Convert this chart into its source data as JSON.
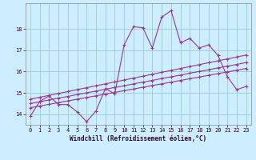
{
  "xlabel": "Windchill (Refroidissement éolien,°C)",
  "background_color": "#cceeff",
  "grid_color": "#99cccc",
  "line_color": "#993399",
  "xmin": -0.5,
  "xmax": 23.5,
  "ymin": 13.5,
  "ymax": 19.2,
  "yticks": [
    14,
    15,
    16,
    17,
    18
  ],
  "xticks": [
    0,
    1,
    2,
    3,
    4,
    5,
    6,
    7,
    8,
    9,
    10,
    11,
    12,
    13,
    14,
    15,
    16,
    17,
    18,
    19,
    20,
    21,
    22,
    23
  ],
  "s1_x": [
    0,
    1,
    2,
    3,
    4,
    5,
    6,
    7,
    8,
    9,
    10,
    11,
    12,
    13,
    14,
    15,
    16,
    17,
    18,
    19,
    20,
    21,
    22,
    23
  ],
  "s1_y": [
    13.9,
    14.6,
    14.85,
    14.45,
    14.45,
    14.1,
    13.65,
    14.15,
    15.2,
    14.95,
    17.25,
    18.1,
    18.05,
    17.1,
    18.55,
    18.85,
    17.35,
    17.55,
    17.1,
    17.25,
    16.75,
    15.75,
    15.15,
    15.3
  ],
  "s2_x": [
    0,
    1,
    2,
    3,
    4,
    5,
    6,
    7,
    8,
    9,
    10,
    11,
    12,
    13,
    14,
    15,
    16,
    17,
    18,
    19,
    20,
    21,
    22,
    23
  ],
  "s2_y": [
    14.3,
    14.38,
    14.46,
    14.54,
    14.62,
    14.7,
    14.78,
    14.86,
    14.94,
    15.02,
    15.1,
    15.18,
    15.26,
    15.34,
    15.42,
    15.5,
    15.58,
    15.66,
    15.74,
    15.82,
    15.9,
    15.98,
    16.06,
    16.14
  ],
  "s3_x": [
    0,
    1,
    2,
    3,
    4,
    5,
    6,
    7,
    8,
    9,
    10,
    11,
    12,
    13,
    14,
    15,
    16,
    17,
    18,
    19,
    20,
    21,
    22,
    23
  ],
  "s3_y": [
    14.5,
    14.58,
    14.67,
    14.75,
    14.83,
    14.92,
    15.0,
    15.08,
    15.17,
    15.25,
    15.33,
    15.42,
    15.5,
    15.58,
    15.67,
    15.75,
    15.83,
    15.92,
    16.0,
    16.08,
    16.17,
    16.25,
    16.33,
    16.42
  ],
  "s4_x": [
    0,
    1,
    2,
    3,
    4,
    5,
    6,
    7,
    8,
    9,
    10,
    11,
    12,
    13,
    14,
    15,
    16,
    17,
    18,
    19,
    20,
    21,
    22,
    23
  ],
  "s4_y": [
    14.7,
    14.79,
    14.88,
    14.97,
    15.06,
    15.15,
    15.24,
    15.33,
    15.42,
    15.51,
    15.6,
    15.69,
    15.78,
    15.87,
    15.96,
    16.05,
    16.14,
    16.23,
    16.32,
    16.41,
    16.5,
    16.59,
    16.68,
    16.77
  ]
}
